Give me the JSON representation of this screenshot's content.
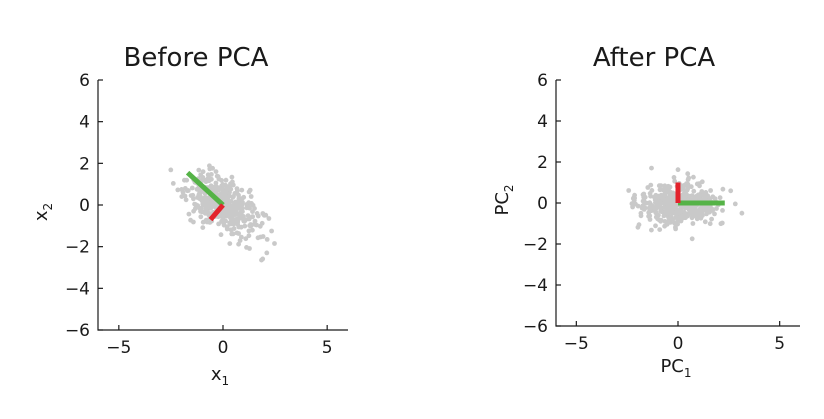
{
  "chart_data": [
    {
      "type": "scatter",
      "title": "Before PCA",
      "xlabel": {
        "base": "x",
        "sub": "1"
      },
      "ylabel": {
        "base": "x",
        "sub": "2"
      },
      "xlim": [
        -6,
        6
      ],
      "ylim": [
        -6,
        6
      ],
      "xticks": [
        -5,
        0,
        5
      ],
      "yticks": [
        -6,
        -4,
        -2,
        0,
        2,
        4,
        6
      ],
      "tick_labels_x": [
        "−5",
        "0",
        "5"
      ],
      "tick_labels_y": [
        "−6",
        "−4",
        "−2",
        "0",
        "2",
        "4",
        "6"
      ],
      "point_color": "#c9c9c9",
      "cloud": {
        "center": [
          0,
          0
        ],
        "sd_major": 1.0,
        "sd_minor": 0.55,
        "angle_deg": -40,
        "count": 420
      },
      "component_lines": [
        {
          "color": "#55b347",
          "from": [
            0,
            0
          ],
          "to": [
            -1.7,
            1.55
          ]
        },
        {
          "color": "#e3232c",
          "from": [
            0,
            0
          ],
          "to": [
            -0.6,
            -0.7
          ]
        }
      ],
      "grid": false,
      "legend": "none"
    },
    {
      "type": "scatter",
      "title": "After PCA",
      "xlabel": {
        "base": "PC",
        "sub": "1"
      },
      "ylabel": {
        "base": "PC",
        "sub": "2"
      },
      "xlim": [
        -6,
        6
      ],
      "ylim": [
        -6,
        6
      ],
      "xticks": [
        -5,
        0,
        5
      ],
      "yticks": [
        -6,
        -4,
        -2,
        0,
        2,
        4,
        6
      ],
      "tick_labels_x": [
        "−5",
        "0",
        "5"
      ],
      "tick_labels_y": [
        "−6",
        "−4",
        "−2",
        "0",
        "2",
        "4",
        "6"
      ],
      "point_color": "#c9c9c9",
      "cloud": {
        "center": [
          0,
          0
        ],
        "sd_major": 1.0,
        "sd_minor": 0.55,
        "angle_deg": 0,
        "count": 420
      },
      "component_lines": [
        {
          "color": "#55b347",
          "from": [
            0,
            0
          ],
          "to": [
            2.3,
            0
          ]
        },
        {
          "color": "#e3232c",
          "from": [
            0,
            0
          ],
          "to": [
            0,
            1.0
          ]
        }
      ],
      "grid": false,
      "legend": "none"
    }
  ]
}
